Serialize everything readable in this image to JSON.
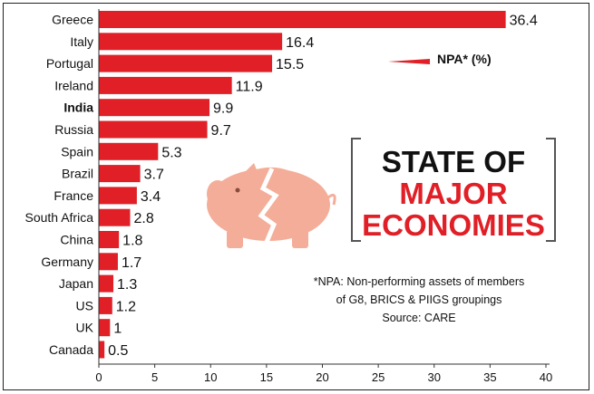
{
  "chart_data": {
    "type": "bar",
    "orientation": "horizontal",
    "categories": [
      "Greece",
      "Italy",
      "Portugal",
      "Ireland",
      "India",
      "Russia",
      "Spain",
      "Brazil",
      "France",
      "South Africa",
      "China",
      "Germany",
      "Japan",
      "US",
      "UK",
      "Canada"
    ],
    "values": [
      36.4,
      16.4,
      15.5,
      11.9,
      9.9,
      9.7,
      5.3,
      3.7,
      3.4,
      2.8,
      1.8,
      1.7,
      1.3,
      1.2,
      1,
      0.5
    ],
    "value_labels": [
      "36.4",
      "16.4",
      "15.5",
      "11.9",
      "9.9",
      "9.7",
      "5.3",
      "3.7",
      "3.4",
      "2.8",
      "1.8",
      "1.7",
      "1.3",
      "1.2",
      "1",
      "0.5"
    ],
    "highlight_category": "India",
    "xlim": [
      0,
      40
    ],
    "xticks": [
      0,
      5,
      10,
      15,
      20,
      25,
      30,
      35,
      40
    ],
    "grid": false,
    "legend": {
      "label": "NPA* (%)",
      "placement": "top-right"
    },
    "bar_color": "#e01f26"
  },
  "headline": {
    "line1": "STATE OF",
    "line2": "MAJOR",
    "line3": "ECONOMIES"
  },
  "footnote": {
    "line1": "*NPA: Non-performing assets of members",
    "line2": "of G8, BRICS & PIIGS groupings",
    "line3": "Source: CARE"
  },
  "colors": {
    "accent_red": "#e01f26",
    "piggy": "#f4ad98",
    "text": "#111111"
  },
  "icons": [
    "broken-piggy-bank-icon"
  ]
}
